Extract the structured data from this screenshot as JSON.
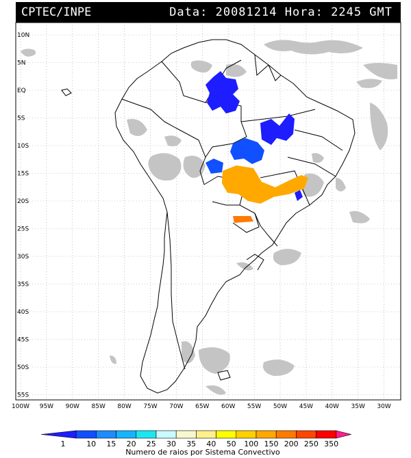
{
  "header": {
    "agency": "CPTEC/INPE",
    "datetime": "Data: 20081214 Hora: 2245 GMT"
  },
  "map": {
    "lat_labels": [
      "10N",
      "5N",
      "EQ",
      "5S",
      "10S",
      "15S",
      "20S",
      "25S",
      "30S",
      "35S",
      "40S",
      "45S",
      "50S",
      "55S"
    ],
    "lon_labels": [
      "100W",
      "95W",
      "90W",
      "85W",
      "80W",
      "75W",
      "70W",
      "65W",
      "60W",
      "55W",
      "50W",
      "45W",
      "40W",
      "35W",
      "30W"
    ],
    "colors": {
      "land_outline": "#000000",
      "cloud_gray": "#c0c0c0",
      "grid": "#9a9a9a"
    }
  },
  "colorbar": {
    "ticks": [
      "1",
      "10",
      "15",
      "20",
      "25",
      "30",
      "35",
      "40",
      "50",
      "100",
      "150",
      "200",
      "250",
      "350"
    ],
    "colors": [
      "#1d1dff",
      "#1050ff",
      "#1e8cff",
      "#16b4ff",
      "#1ee6f0",
      "#c8faff",
      "#f8f8d0",
      "#fff08c",
      "#ffff00",
      "#ffd000",
      "#ffa800",
      "#ff7a00",
      "#ff4600",
      "#ff0000",
      "#ff1e8c"
    ],
    "title": "Numero de raios por Sistema Convectivo"
  }
}
